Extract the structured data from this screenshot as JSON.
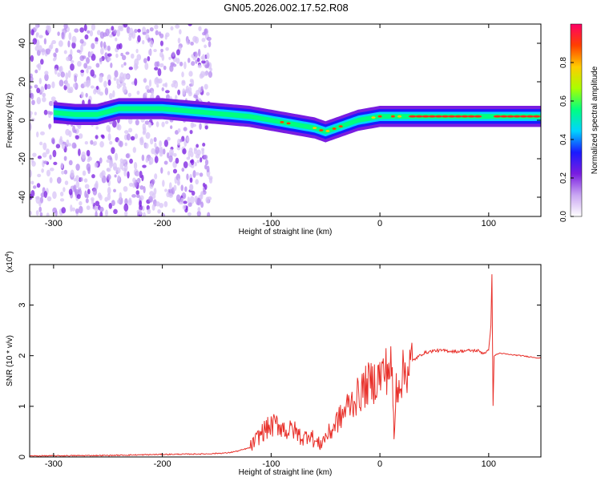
{
  "title": "GN05.2026.002.17.52.R08",
  "chart_data": [
    {
      "type": "heatmap",
      "name": "spectrogram",
      "xlabel": "Height of straight line (km)",
      "ylabel": "Frequency (Hz)",
      "xlim": [
        -322,
        148
      ],
      "ylim": [
        -50,
        50
      ],
      "xticks": [
        -300,
        -200,
        -100,
        0,
        100
      ],
      "yticks": [
        -40,
        -20,
        0,
        20,
        40
      ],
      "ridge": {
        "x": [
          -300,
          -280,
          -260,
          -240,
          -220,
          -200,
          -180,
          -160,
          -140,
          -120,
          -100,
          -90,
          -80,
          -70,
          -60,
          -50,
          -45,
          -40,
          -30,
          -20,
          -10,
          0,
          20,
          40,
          60,
          80,
          95,
          100,
          120,
          148
        ],
        "y": [
          4,
          3,
          3,
          6,
          6,
          6,
          5,
          4,
          3,
          2,
          0,
          -1,
          -2,
          -3,
          -4,
          -6,
          -5,
          -4,
          -2,
          0,
          1,
          2,
          2,
          2,
          2,
          2,
          2,
          2,
          2,
          2
        ]
      },
      "noise_region_x": [
        -322,
        -155
      ]
    },
    {
      "type": "line",
      "name": "snr",
      "xlabel": "Height of straight line (km)",
      "ylabel": "SNR (10 * v/v)",
      "exponent_label": "(x10",
      "exponent_power": "4",
      "exponent_close": ")",
      "xlim": [
        -322,
        148
      ],
      "ylim": [
        0,
        3.8
      ],
      "xticks": [
        -300,
        -200,
        -100,
        0,
        100
      ],
      "yticks": [
        0,
        1,
        2,
        3
      ],
      "series": [
        {
          "name": "SNR",
          "color": "#e8302a",
          "x": [
            -322,
            -250,
            -200,
            -160,
            -140,
            -130,
            -120,
            -115,
            -110,
            -105,
            -100,
            -95,
            -90,
            -85,
            -80,
            -75,
            -70,
            -65,
            -60,
            -55,
            -50,
            -45,
            -40,
            -35,
            -30,
            -25,
            -20,
            -15,
            -10,
            -5,
            0,
            5,
            10,
            12,
            13,
            15,
            20,
            25,
            30,
            40,
            50,
            60,
            70,
            80,
            90,
            95,
            100,
            102,
            103,
            104,
            105,
            110,
            120,
            130,
            148
          ],
          "y": [
            0.02,
            0.03,
            0.05,
            0.06,
            0.08,
            0.12,
            0.18,
            0.3,
            0.45,
            0.55,
            0.6,
            0.65,
            0.6,
            0.5,
            0.55,
            0.45,
            0.35,
            0.5,
            0.3,
            0.25,
            0.4,
            0.5,
            0.7,
            0.8,
            1.0,
            1.1,
            1.2,
            1.35,
            1.45,
            1.5,
            1.6,
            1.7,
            1.8,
            1.2,
            0.3,
            1.4,
            1.6,
            1.75,
            1.9,
            2.05,
            2.1,
            2.1,
            2.08,
            2.1,
            2.1,
            2.05,
            2.1,
            2.6,
            3.6,
            1.0,
            2.0,
            2.05,
            2.02,
            2.0,
            1.95
          ]
        }
      ]
    }
  ],
  "colorbar": {
    "label": "Normalized spectral amplitude",
    "ticks": [
      0.0,
      0.2,
      0.4,
      0.6,
      0.8
    ],
    "tick_labels": [
      "0.0",
      "0.2",
      "0.4",
      "0.6",
      "0.8"
    ],
    "colors": [
      "#ffffff",
      "#c9a6f2",
      "#7a1de0",
      "#1a1aff",
      "#00d4ff",
      "#00ff80",
      "#aaff00",
      "#ffcc00",
      "#ff4000",
      "#ff0066"
    ]
  },
  "colors": {
    "axis": "#000000",
    "snr_line": "#e8302a",
    "spectrogram_bg": "#ffffff"
  }
}
